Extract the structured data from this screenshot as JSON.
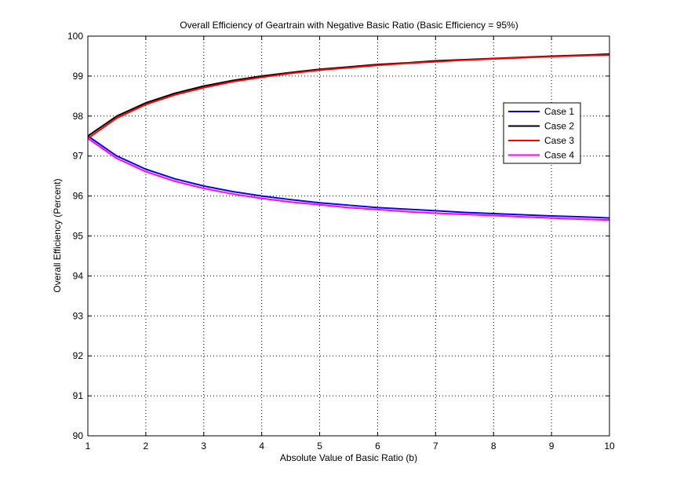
{
  "chart_data": {
    "type": "line",
    "title": "Overall Efficiency of Geartrain with Negative Basic Ratio (Basic Efficiency = 95%)",
    "xlabel": "Absolute Value of Basic Ratio (b)",
    "ylabel": "Overall Efficiency (Percent)",
    "xlim": [
      1,
      10
    ],
    "ylim": [
      90,
      100
    ],
    "xticks": [
      "1",
      "2",
      "3",
      "4",
      "5",
      "6",
      "7",
      "8",
      "9",
      "10"
    ],
    "yticks": [
      "90",
      "91",
      "92",
      "93",
      "94",
      "95",
      "96",
      "97",
      "98",
      "99",
      "100"
    ],
    "grid": true,
    "legend_position": "right",
    "x": [
      1,
      1.5,
      2,
      2.5,
      3,
      3.5,
      4,
      4.5,
      5,
      5.5,
      6,
      6.5,
      7,
      7.5,
      8,
      8.5,
      9,
      9.5,
      10
    ],
    "series": [
      {
        "name": "Case 1",
        "color": "#0000ff",
        "values": [
          97.5,
          97.0,
          96.67,
          96.43,
          96.25,
          96.11,
          96.0,
          95.91,
          95.83,
          95.77,
          95.71,
          95.67,
          95.63,
          95.59,
          95.56,
          95.53,
          95.5,
          95.48,
          95.45
        ]
      },
      {
        "name": "Case 2",
        "color": "#000000",
        "values": [
          97.5,
          98.0,
          98.33,
          98.57,
          98.75,
          98.89,
          99.0,
          99.09,
          99.17,
          99.23,
          99.29,
          99.33,
          99.38,
          99.41,
          99.44,
          99.47,
          99.5,
          99.52,
          99.55
        ]
      },
      {
        "name": "Case 3",
        "color": "#ff0000",
        "values": [
          97.44,
          97.95,
          98.29,
          98.53,
          98.71,
          98.86,
          98.97,
          99.07,
          99.15,
          99.21,
          99.27,
          99.32,
          99.36,
          99.4,
          99.43,
          99.46,
          99.49,
          99.51,
          99.53
        ]
      },
      {
        "name": "Case 4",
        "color": "#ff00ff",
        "values": [
          97.44,
          96.94,
          96.61,
          96.37,
          96.19,
          96.05,
          95.94,
          95.85,
          95.78,
          95.71,
          95.66,
          95.61,
          95.57,
          95.54,
          95.51,
          95.48,
          95.45,
          95.42,
          95.4
        ]
      }
    ]
  }
}
